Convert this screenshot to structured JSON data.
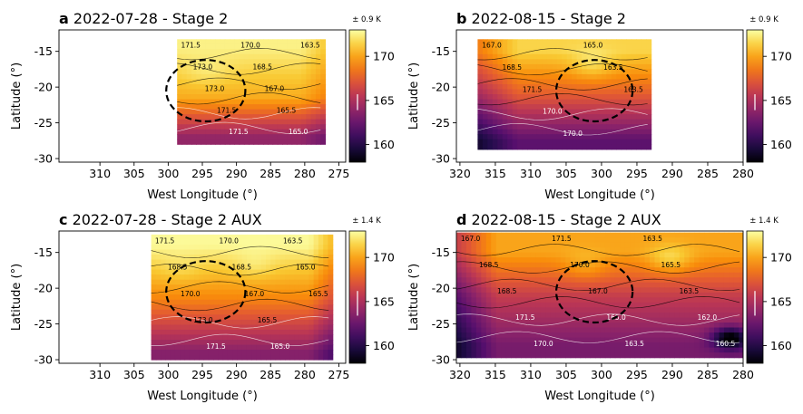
{
  "chart_data": [
    {
      "type": "heatmap",
      "panel_letter": "a",
      "title": "2022-07-28 - Stage 2",
      "xlabel": "West Longitude (°)",
      "ylabel": "Latitude (°)",
      "xlim": [
        316,
        274
      ],
      "ylim": [
        -30.5,
        -12
      ],
      "xticks": [
        310,
        305,
        300,
        295,
        290,
        285,
        280,
        275
      ],
      "yticks": [
        -15,
        -20,
        -25,
        -30
      ],
      "colorbar": {
        "range": [
          158,
          173
        ],
        "ticks": [
          160,
          165,
          170
        ],
        "uncertainty_label": "± 0.9 K",
        "uncertainty_K": 0.9,
        "colormap": "inferno"
      },
      "circle": {
        "center_lon": 294.5,
        "center_lat": -20.5,
        "radius_lon": 5.8,
        "radius_lat": 4.3
      },
      "region": {
        "lon_max": 298.7,
        "lon_min": 277.2,
        "lat_max": -13.3,
        "lat_min": -27.8
      },
      "field": {
        "base": 172.2,
        "bumps": [
          {
            "lon": 295,
            "lat": -18,
            "amp": 0.8,
            "slon": 3.5,
            "slat": 2
          }
        ],
        "lat_top": -14.5,
        "lat_mid": -21.5,
        "lat_bot": -27,
        "edge_top": 172.5,
        "edge_mid": 170.2,
        "edge_bot": 164,
        "east_falloff": 1.5
      },
      "contour_labels": [
        "171.5",
        "173.0",
        "173.0",
        "171.5",
        "171.5",
        "170.0",
        "168.5",
        "167.0",
        "165.5",
        "165.0",
        "163.5"
      ]
    },
    {
      "type": "heatmap",
      "panel_letter": "b",
      "title": "2022-08-15 - Stage 2",
      "xlabel": "West Longitude (°)",
      "ylabel": "Latitude (°)",
      "xlim": [
        320.5,
        280
      ],
      "ylim": [
        -30.5,
        -12
      ],
      "xticks": [
        320,
        315,
        310,
        305,
        300,
        295,
        290,
        285,
        280
      ],
      "yticks": [
        -15,
        -20,
        -25,
        -30
      ],
      "colorbar": {
        "range": [
          158,
          173
        ],
        "ticks": [
          160,
          165,
          170
        ],
        "uncertainty_label": "± 0.9 K",
        "uncertainty_K": 0.9,
        "colormap": "inferno"
      },
      "circle": {
        "center_lon": 301,
        "center_lat": -20.5,
        "radius_lon": 5.4,
        "radius_lat": 4.3
      },
      "region": {
        "lon_max": 317.5,
        "lon_min": 293.5,
        "lat_max": -13.3,
        "lat_min": -28
      },
      "field": {
        "base": 171,
        "bumps": [
          {
            "lon": 302,
            "lat": -17,
            "amp": 1.5,
            "slon": 3,
            "slat": 2
          }
        ],
        "lat_top": -15,
        "lat_mid": -21,
        "lat_bot": -27.5,
        "edge_top": 171.5,
        "edge_mid": 167.5,
        "edge_bot": 162,
        "west_falloff": 2.5
      },
      "contour_labels": [
        "167.0",
        "168.5",
        "171.5",
        "170.0",
        "170.0",
        "165.0",
        "163.5",
        "163.5"
      ]
    },
    {
      "type": "heatmap",
      "panel_letter": "c",
      "title": "2022-07-28 - Stage 2 AUX",
      "xlabel": "West Longitude (°)",
      "ylabel": "Latitude (°)",
      "xlim": [
        316,
        274
      ],
      "ylim": [
        -30.5,
        -12
      ],
      "xticks": [
        310,
        305,
        300,
        295,
        290,
        285,
        280,
        275
      ],
      "yticks": [
        -15,
        -20,
        -25,
        -30
      ],
      "colorbar": {
        "range": [
          158,
          173
        ],
        "ticks": [
          160,
          165,
          170
        ],
        "uncertainty_label": "± 1.4 K",
        "uncertainty_K": 1.4,
        "colormap": "inferno"
      },
      "circle": {
        "center_lon": 294.5,
        "center_lat": -20.5,
        "radius_lon": 5.8,
        "radius_lat": 4.3
      },
      "region": {
        "lon_max": 302.5,
        "lon_min": 276,
        "lat_max": -12.5,
        "lat_min": -29.7
      },
      "field": {
        "base": 172.3,
        "bumps": [
          {
            "lon": 288,
            "lat": -17,
            "amp": 0.8,
            "slon": 3,
            "slat": 2
          },
          {
            "lon": 299,
            "lat": -17.5,
            "amp": 0.6,
            "slon": 3,
            "slat": 2
          }
        ],
        "lat_top": -14,
        "lat_mid": -21.5,
        "lat_bot": -29,
        "edge_top": 172.8,
        "edge_mid": 169,
        "edge_bot": 163.5,
        "east_falloff": 2.5
      },
      "contour_labels": [
        "171.5",
        "168.5",
        "170.0",
        "173.0",
        "171.5",
        "170.0",
        "168.5",
        "167.0",
        "165.5",
        "165.0",
        "163.5",
        "165.0",
        "165.5"
      ]
    },
    {
      "type": "heatmap",
      "panel_letter": "d",
      "title": "2022-08-15 - Stage 2 AUX",
      "xlabel": "West Longitude (°)",
      "ylabel": "Latitude (°)",
      "xlim": [
        320.5,
        280
      ],
      "ylim": [
        -30.5,
        -12
      ],
      "xticks": [
        320,
        315,
        310,
        305,
        300,
        295,
        290,
        285,
        280
      ],
      "yticks": [
        -15,
        -20,
        -25,
        -30
      ],
      "colorbar": {
        "range": [
          158,
          173
        ],
        "ticks": [
          160,
          165,
          170
        ],
        "uncertainty_label": "± 1.4 K",
        "uncertainty_K": 1.4,
        "colormap": "inferno"
      },
      "circle": {
        "center_lon": 301,
        "center_lat": -20.5,
        "radius_lon": 5.4,
        "radius_lat": 4.3
      },
      "region": {
        "lon_max": 320.5,
        "lon_min": 280.5,
        "lat_max": -12.2,
        "lat_min": -29.3
      },
      "field": {
        "base": 170.5,
        "bumps": [
          {
            "lon": 291,
            "lat": -16,
            "amp": 2,
            "slon": 3,
            "slat": 2
          },
          {
            "lon": 303,
            "lat": -17,
            "amp": 1.3,
            "slon": 3,
            "slat": 2
          }
        ],
        "lat_top": -15,
        "lat_mid": -21,
        "lat_bot": -28,
        "edge_top": 170,
        "edge_mid": 166,
        "edge_bot": 163,
        "west_falloff": 3.5,
        "cold_spot": {
          "lon": 282.5,
          "lat": -27,
          "amp": -6,
          "slon": 2.5,
          "slat": 1.5
        }
      },
      "contour_labels": [
        "167.0",
        "168.5",
        "168.5",
        "171.5",
        "170.0",
        "171.5",
        "170.0",
        "167.0",
        "165.0",
        "163.5",
        "163.5",
        "165.5",
        "163.5",
        "162.0",
        "160.5"
      ]
    }
  ]
}
